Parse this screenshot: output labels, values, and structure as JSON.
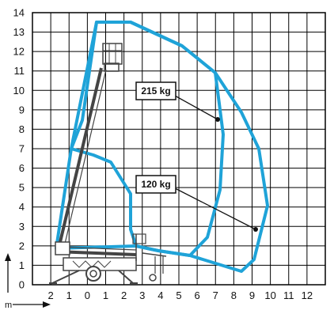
{
  "diagram": {
    "x_unit": "m",
    "x_ticks": [
      "2",
      "1",
      "0",
      "1",
      "2",
      "3",
      "4",
      "5",
      "6",
      "7",
      "8",
      "9",
      "10",
      "11",
      "12"
    ],
    "y_ticks": [
      "0",
      "1",
      "2",
      "3",
      "4",
      "5",
      "6",
      "7",
      "8",
      "9",
      "10",
      "11",
      "12",
      "13",
      "14"
    ],
    "load_labels": [
      {
        "text": "215 kg"
      },
      {
        "text": "120 kg"
      }
    ],
    "colors": {
      "envelope": "#1fa3d8",
      "grid": "#000000",
      "machine": "#444444"
    }
  }
}
